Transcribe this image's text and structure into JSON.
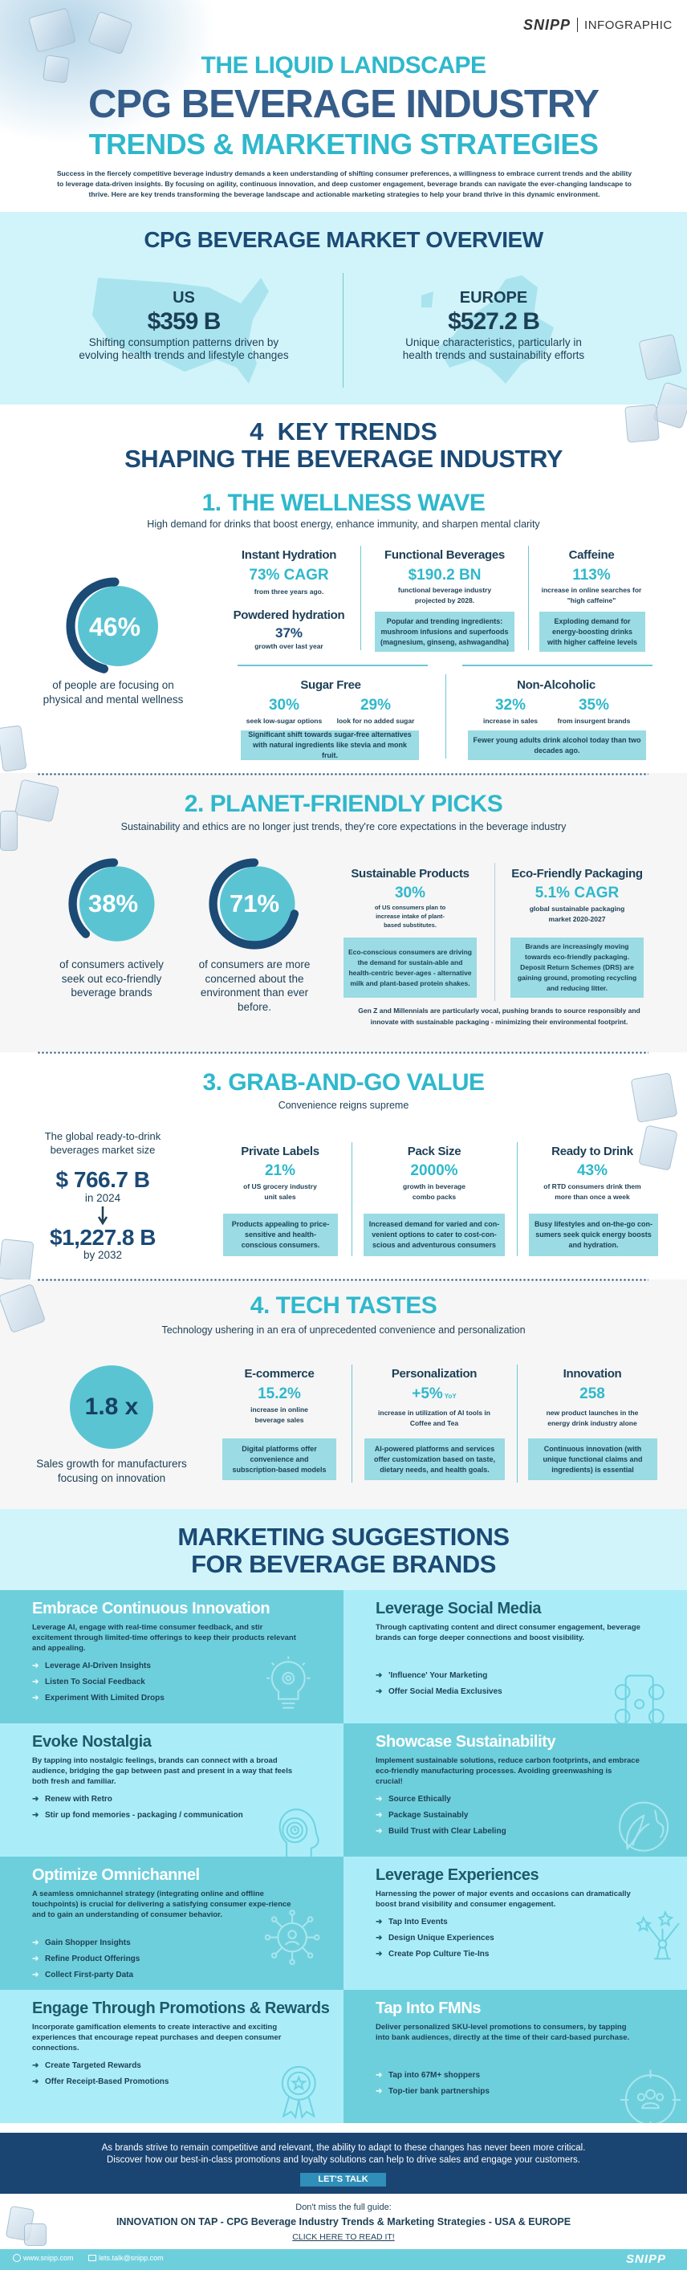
{
  "header": {
    "brand": "SNIPP",
    "brand_tag": "INFOGRAPHIC",
    "title_line1": "THE LIQUID LANDSCAPE",
    "title_line2": "CPG BEVERAGE INDUSTRY",
    "title_line3": "TRENDS & MARKETING STRATEGIES",
    "intro": "Success in the fiercely competitive beverage industry demands a keen understanding of shifting consumer preferences, a willingness to embrace current trends and the ability to leverage data-driven insights. By focusing on agility, continuous innovation, and deep customer engagement, beverage brands can navigate the ever-changing landscape to thrive. Here are key trends transforming the beverage landscape and actionable marketing strategies to help your brand thrive in this dynamic environment."
  },
  "overview": {
    "title": "CPG BEVERAGE MARKET OVERVIEW",
    "regions": [
      {
        "name": "US",
        "value": "$359 B",
        "desc": "Shifting consumption patterns driven by evolving health trends and lifestyle changes"
      },
      {
        "name": "EUROPE",
        "value": "$527.2 B",
        "desc": "Unique characteristics, particularly in health trends and sustainability efforts"
      }
    ]
  },
  "trends": {
    "title_line1": "4  KEY TRENDS",
    "title_line2": "SHAPING THE BEVERAGE INDUSTRY"
  },
  "wellness": {
    "title": "1. THE WELLNESS WAVE",
    "subtitle": "High demand for drinks that boost energy, enhance immunity, and sharpen mental clarity",
    "ring": {
      "value": "46%",
      "percent": 46,
      "caption": "of people are focusing on physical and mental wellness"
    },
    "instant": {
      "title": "Instant Hydration",
      "stat": "73% CAGR",
      "desc": "from three years ago.",
      "sub_title": "Powdered hydration",
      "sub_stat": "37%",
      "sub_desc": "growth over last year"
    },
    "functional": {
      "title": "Functional Beverages",
      "stat": "$190.2 BN",
      "desc": "functional beverage industry projected  by 2028.",
      "box": "Popular and trending ingredients: mushroom infusions and superfoods (magnesium, ginseng, ashwagandha)"
    },
    "caffeine": {
      "title": "Caffeine",
      "stat": "113%",
      "desc": "increase in online searches for \"high caffeine\"",
      "box": "Exploding demand for energy-boosting drinks with higher caffeine levels"
    },
    "sugar": {
      "title": "Sugar Free",
      "stats": [
        {
          "value": "30%",
          "label": "seek low-sugar options"
        },
        {
          "value": "29%",
          "label": "look for no added sugar"
        }
      ],
      "box": "Significant shift towards sugar-free alternatives with natural ingredients like stevia and monk fruit."
    },
    "nonalc": {
      "title": "Non-Alcoholic",
      "stats": [
        {
          "value": "32%",
          "label": "increase in sales"
        },
        {
          "value": "35%",
          "label": "from insurgent brands"
        }
      ],
      "box": "Fewer young adults drink alcohol today than two decades ago."
    }
  },
  "planet": {
    "title": "2. PLANET-FRIENDLY PICKS",
    "subtitle": "Sustainability and ethics are no longer just trends, they're core expectations in the beverage industry",
    "rings": [
      {
        "value": "38%",
        "percent": 38,
        "caption": "of consumers actively seek out eco-friendly beverage brands"
      },
      {
        "value": "71%",
        "percent": 71,
        "caption": "of consumers are more concerned about the environment than ever before."
      }
    ],
    "sustainable": {
      "title": "Sustainable Products",
      "stat": "30%",
      "desc": "of US consumers plan to increase intake of plant-based substitutes.",
      "box": "Eco-conscious consumers are driving the demand for sustain-able and health-centric bever-ages - alternative milk and plant-based protein shakes."
    },
    "packaging": {
      "title": "Eco-Friendly Packaging",
      "stat": "5.1% CAGR",
      "desc": "global sustainable packaging market 2020-2027",
      "box": "Brands are increasingly moving towards eco-friendly packaging. Deposit Return Schemes (DRS) are gaining ground, promoting recycling and reducing litter."
    },
    "note": "Gen Z and Millennials are particularly vocal, pushing brands to source responsibly and innovate with sustainable packaging - minimizing their environmental footprint."
  },
  "grab": {
    "title": "3. GRAB-AND-GO VALUE",
    "subtitle": "Convenience reigns supreme",
    "market": {
      "label": "The global ready-to-drink beverages market size",
      "value_from": "$ 766.7 B",
      "year_from": "in 2024",
      "value_to": "$1,227.8 B",
      "year_to": "by 2032"
    },
    "cols": [
      {
        "title": "Private Labels",
        "stat": "21%",
        "desc": "of US grocery industry unit sales",
        "box": "Products appealing to price-sensitive and health-conscious consumers."
      },
      {
        "title": "Pack Size",
        "stat": "2000%",
        "desc": "growth in beverage combo packs",
        "box": "Increased demand for varied and con-venient options to cater to cost-con-scious and adventurous consumers"
      },
      {
        "title": "Ready to Drink",
        "stat": "43%",
        "desc": "of RTD consumers drink them more than once a week",
        "box": "Busy lifestyles and on-the-go con-sumers seek quick energy boosts and hydration."
      }
    ]
  },
  "tech": {
    "title": "4. TECH TASTES",
    "subtitle": "Technology ushering in an era of unprecedented convenience and personalization",
    "circle": {
      "value": "1.8 x",
      "caption": "Sales growth for manufacturers focusing on innovation"
    },
    "cols": [
      {
        "title": "E-commerce",
        "stat": "15.2%",
        "stat_suffix": "",
        "desc": "increase in online beverage sales",
        "box": "Digital platforms offer convenience and subscription-based models"
      },
      {
        "title": "Personalization",
        "stat": "+5%",
        "stat_suffix": "YoY",
        "desc": "increase in utilization of AI tools in Coffee and Tea",
        "box": "AI-powered platforms and services offer customization based on taste, dietary needs, and health goals."
      },
      {
        "title": "Innovation",
        "stat": "258",
        "stat_suffix": "",
        "desc": "new product launches in the energy drink industry alone",
        "box": "Continuous innovation (with unique functional claims and ingredients) is essential"
      }
    ]
  },
  "marketing": {
    "title_line1": "MARKETING SUGGESTIONS",
    "title_line2": "FOR BEVERAGE BRANDS",
    "cards": [
      {
        "title": "Embrace Continuous Innovation",
        "body": "Leverage AI, engage with  real-time consumer feedback, and stir excitement through  limited-time offerings to keep their products relevant and appealing.",
        "bullets": [
          "Leverage AI-Driven Insights",
          "Listen To Social Feedback",
          "Experiment With Limited Drops"
        ],
        "icon": "lightbulb-gear-icon"
      },
      {
        "title": "Leverage Social Media",
        "body": "Through captivating content and direct consumer engagement, beverage brands can forge deeper connections and boost visibility.",
        "bullets": [
          "'Influence' Your Marketing",
          "Offer Social Media Exclusives"
        ],
        "icon": "social-media-icon"
      },
      {
        "title": "Evoke Nostalgia",
        "body": "By tapping into nostalgic feelings, brands can connect with a broad audience, bridging the gap between past and present in a way that feels both fresh and familiar.",
        "bullets": [
          "Renew with Retro",
          "Stir up fond memories - packaging / communication"
        ],
        "icon": "head-clock-icon"
      },
      {
        "title": "Showcase Sustainability",
        "body": "Implement sustainable solutions, reduce carbon footprints, and embrace eco-friendly manufacturing processes. Avoiding greenwashing is crucial!",
        "bullets": [
          "Source Ethically",
          "Package Sustainably",
          "Build Trust with Clear Labeling"
        ],
        "icon": "globe-leaf-icon"
      },
      {
        "title": "Optimize Omnichannel",
        "body": "A seamless omnichannel strategy (integrating online and offline touchpoints) is crucial for delivering a satisfying consumer expe-rience and to gain an understanding of consumer behavior.",
        "bullets": [
          "Gain Shopper Insights",
          "Refine Product Offerings",
          "Collect First-party Data"
        ],
        "icon": "network-user-icon"
      },
      {
        "title": "Leverage Experiences",
        "body": "Harnessing the power of major events and occasions can dramatically boost brand visibility and consumer engagement.",
        "bullets": [
          "Tap Into Events",
          "Design Unique Experiences",
          "Create Pop Culture Tie-Ins"
        ],
        "icon": "fireworks-icon"
      },
      {
        "title": "Engage Through Promotions & Rewards",
        "body": "Incorporate gamification elements to create interactive and exciting experiences that encourage repeat purchases and deepen consumer connections.",
        "bullets": [
          "Create Targeted Rewards",
          "Offer Receipt-Based Promotions"
        ],
        "icon": "award-ribbon-icon"
      },
      {
        "title": "Tap Into FMNs",
        "body": "Deliver personalized SKU-level promotions to consumers, by tapping into bank audiences, directly at the time of their card-based purchase.",
        "bullets": [
          "Tap into 67M+ shoppers",
          "Top-tier bank partnerships"
        ],
        "icon": "target-audience-icon"
      }
    ]
  },
  "cta": {
    "line1": "As brands strive to remain competitive and relevant, the ability to adapt to these changes has never been more critical.",
    "line2": "Discover how our best-in-class promotions and loyalty solutions can help to drive sales and engage your customers.",
    "button": "LET'S TALK"
  },
  "guide": {
    "lead": "Don't miss the full guide:",
    "title": "INNOVATION ON TAP - CPG Beverage Industry Trends & Marketing Strategies - USA & EUROPE",
    "link": "CLICK HERE TO READ IT!"
  },
  "footer": {
    "website": "www.snipp.com",
    "email": "lets.talk@snipp.com",
    "brand": "SNIPP"
  },
  "colors": {
    "navy": "#1b4a75",
    "cyan": "#2fb8cc",
    "light_bg": "#d0f4fa",
    "card_dark": "#6ecfdc",
    "card_light": "#aaedf8",
    "box": "#9adbe4",
    "cta_bg": "#1a4472"
  }
}
